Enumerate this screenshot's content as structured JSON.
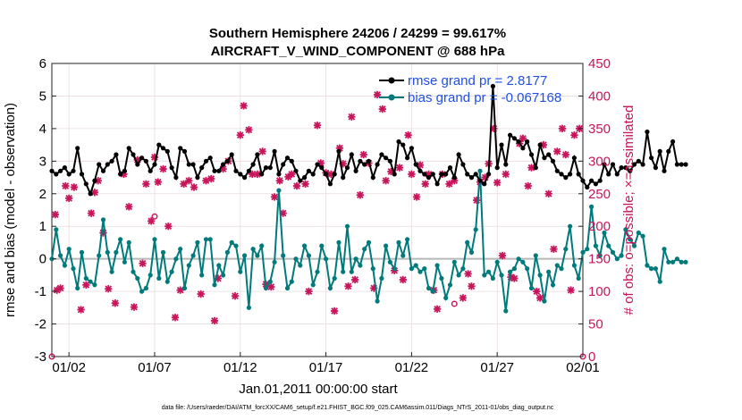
{
  "chart_data": {
    "type": "line",
    "title_line1": "Southern Hemisphere 24206 / 24299 = 99.617%",
    "title_line2": "AIRCRAFT_V_WIND_COMPONENT @ 688 hPa",
    "xlabel": "Jan.01,2011 00:00:00 start",
    "ylabel_left": "rmse and bias (model - observation)",
    "ylabel_right": "# of obs: o=possible; ×=assimilated",
    "ylim_left": [
      -3,
      6
    ],
    "ylim_right": [
      0,
      450
    ],
    "xlim": [
      1,
      32
    ],
    "x_ticks": [
      {
        "x": 2,
        "label": "01/02"
      },
      {
        "x": 7,
        "label": "01/07"
      },
      {
        "x": 12,
        "label": "01/12"
      },
      {
        "x": 17,
        "label": "01/17"
      },
      {
        "x": 22,
        "label": "01/22"
      },
      {
        "x": 27,
        "label": "01/27"
      },
      {
        "x": 32,
        "label": "02/01"
      }
    ],
    "y_ticks_left": [
      "-3",
      "-2",
      "-1",
      "0",
      "1",
      "2",
      "3",
      "4",
      "5",
      "6"
    ],
    "y_ticks_right": [
      "0",
      "50",
      "100",
      "150",
      "200",
      "250",
      "300",
      "350",
      "400",
      "450"
    ],
    "footnote": "data file: /Users/raeder/DAI/ATM_forcXX/CAM6_setup/f.e21.FHIST_BGC.f09_025.CAM6assim.011/Diags_NTrS_2011-01/obs_diag_output.nc",
    "series": [
      {
        "name": "rmse grand pr = 2.8177",
        "color": "#000000",
        "x_start": 1.0,
        "x_step": 0.25,
        "values": [
          2.7,
          2.6,
          2.7,
          2.8,
          2.6,
          2.7,
          3.4,
          2.6,
          2.3,
          2.0,
          2.4,
          2.9,
          2.7,
          2.9,
          3.0,
          3.2,
          2.6,
          2.7,
          3.4,
          3.2,
          2.9,
          3.1,
          3.0,
          2.7,
          2.9,
          3.5,
          3.4,
          3.3,
          2.8,
          2.5,
          3.4,
          3.3,
          2.9,
          2.9,
          2.5,
          2.8,
          3.0,
          3.1,
          2.7,
          2.7,
          2.9,
          3.0,
          3.2,
          2.7,
          2.6,
          2.5,
          2.7,
          2.9,
          3.2,
          2.6,
          2.8,
          2.8,
          3.3,
          2.6,
          2.9,
          3.1,
          3.0,
          2.7,
          2.4,
          2.5,
          2.7,
          2.6,
          2.9,
          2.8,
          2.6,
          2.3,
          2.6,
          3.3,
          2.5,
          2.8,
          3.2,
          2.7,
          3.0,
          2.9,
          3.0,
          2.5,
          2.9,
          3.2,
          3.1,
          3.0,
          2.6,
          3.6,
          3.5,
          3.1,
          3.4,
          2.9,
          2.7,
          2.6,
          2.5,
          2.6,
          2.3,
          2.6,
          2.6,
          2.8,
          2.5,
          3.2,
          2.9,
          2.6,
          2.5,
          2.6,
          2.4,
          2.3,
          2.6,
          5.3,
          2.8,
          3.5,
          2.9,
          3.8,
          3.7,
          3.6,
          3.4,
          3.6,
          3.2,
          2.8,
          3.5,
          3.1,
          3.2,
          3.0,
          2.7,
          2.6,
          2.5,
          2.6,
          3.1,
          2.6,
          2.4,
          2.2,
          2.4,
          2.3,
          2.4,
          2.9,
          2.6,
          2.9,
          2.6,
          2.8,
          2.8,
          2.7,
          2.9,
          3.0,
          2.9,
          3.9,
          3.1,
          2.8,
          3.3,
          2.7,
          3.3,
          3.6,
          2.9,
          2.9,
          2.9
        ]
      },
      {
        "name": "bias grand pr = -0.067168",
        "color": "#007a7a",
        "x_start": 1.0,
        "x_step": 0.25,
        "values": [
          0.0,
          0.9,
          0.1,
          -0.2,
          0.3,
          -0.3,
          -0.9,
          0.2,
          -0.6,
          -0.7,
          -0.8,
          0.1,
          1.2,
          0.2,
          -0.4,
          0.2,
          0.6,
          -0.1,
          0.5,
          -0.4,
          -0.6,
          -1.0,
          -0.9,
          -0.5,
          0.6,
          -0.6,
          0.2,
          -0.7,
          -0.4,
          0.0,
          0.3,
          -0.9,
          -0.2,
          0.1,
          0.5,
          -0.5,
          0.6,
          0.6,
          -0.8,
          -0.2,
          -0.5,
          0.2,
          0.5,
          0.4,
          -0.4,
          0.1,
          -1.5,
          0.3,
          0.1,
          0.4,
          -0.9,
          -0.7,
          -0.1,
          2.1,
          0.1,
          -0.9,
          -0.7,
          0.0,
          -0.2,
          0.4,
          0.1,
          -0.8,
          -0.4,
          0.4,
          0.0,
          -0.9,
          -0.6,
          0.5,
          -0.4,
          1.0,
          -0.4,
          0.0,
          -0.2,
          0.3,
          0.5,
          -0.3,
          -1.3,
          -0.6,
          0.4,
          -0.1,
          -0.3,
          0.5,
          0.1,
          0.6,
          -0.3,
          -0.2,
          -0.4,
          -0.3,
          -0.9,
          -1.0,
          -0.2,
          -0.6,
          -1.2,
          -0.8,
          -0.1,
          -0.5,
          -0.3,
          0.5,
          0.2,
          0.9,
          2.7,
          -0.5,
          -0.4,
          -0.6,
          -0.1,
          -0.5,
          -1.6,
          -0.4,
          -0.3,
          0.0,
          -0.1,
          -0.3,
          -0.9,
          0.1,
          -0.5,
          -1.3,
          -0.4,
          -0.8,
          -0.2,
          -0.3,
          0.3,
          1.0,
          -0.2,
          -0.6,
          0.2,
          0.3,
          1.6,
          0.4,
          0.1,
          0.8,
          0.4,
          0.2,
          0.0,
          0.1,
          0.9,
          0.6,
          0.4,
          0.8,
          0.7,
          -0.2,
          -0.3,
          -0.3,
          -0.7,
          0.3,
          -0.1,
          -0.1,
          0.0,
          -0.1,
          -0.1
        ]
      },
      {
        "name": "# of obs possible",
        "color": "#c8145a",
        "marker": "o",
        "points": [
          [
            1,
            0
          ],
          [
            7,
            215
          ],
          [
            24.5,
            81
          ],
          [
            32,
            0
          ]
        ]
      },
      {
        "name": "# of obs assimilated",
        "color": "#c8145a",
        "marker": "x",
        "points": [
          [
            1.2,
            218
          ],
          [
            1.3,
            102
          ],
          [
            1.5,
            105
          ],
          [
            1.8,
            262
          ],
          [
            2.0,
            243
          ],
          [
            2.3,
            260
          ],
          [
            2.7,
            72
          ],
          [
            3.0,
            110
          ],
          [
            3.3,
            220
          ],
          [
            3.5,
            252
          ],
          [
            3.7,
            270
          ],
          [
            4.0,
            190
          ],
          [
            4.3,
            104
          ],
          [
            4.7,
            82
          ],
          [
            5.2,
            280
          ],
          [
            5.5,
            230
          ],
          [
            5.8,
            76
          ],
          [
            6.0,
            302
          ],
          [
            6.3,
            143
          ],
          [
            6.5,
            265
          ],
          [
            6.8,
            208
          ],
          [
            7.0,
            306
          ],
          [
            7.2,
            268
          ],
          [
            7.5,
            288
          ],
          [
            7.8,
            200
          ],
          [
            8.2,
            60
          ],
          [
            8.5,
            102
          ],
          [
            8.7,
            265
          ],
          [
            9.0,
            270
          ],
          [
            9.3,
            260
          ],
          [
            9.7,
            96
          ],
          [
            10.0,
            270
          ],
          [
            10.3,
            273
          ],
          [
            10.5,
            55
          ],
          [
            10.7,
            120
          ],
          [
            11.0,
            288
          ],
          [
            11.3,
            300
          ],
          [
            11.7,
            93
          ],
          [
            12.0,
            340
          ],
          [
            12.2,
            385
          ],
          [
            12.5,
            348
          ],
          [
            12.7,
            280
          ],
          [
            13.0,
            280
          ],
          [
            13.3,
            315
          ],
          [
            13.5,
            111
          ],
          [
            13.8,
            107
          ],
          [
            14.0,
            245
          ],
          [
            14.3,
            270
          ],
          [
            14.5,
            220
          ],
          [
            14.8,
            276
          ],
          [
            15.0,
            280
          ],
          [
            15.3,
            262
          ],
          [
            15.8,
            265
          ],
          [
            16.0,
            100
          ],
          [
            16.5,
            355
          ],
          [
            16.7,
            297
          ],
          [
            17.0,
            282
          ],
          [
            17.3,
            280
          ],
          [
            17.5,
            70
          ],
          [
            17.8,
            320
          ],
          [
            18.0,
            296
          ],
          [
            18.3,
            108
          ],
          [
            18.5,
            368
          ],
          [
            18.7,
            118
          ],
          [
            19.0,
            248
          ],
          [
            19.2,
            310
          ],
          [
            19.5,
            297
          ],
          [
            19.8,
            105
          ],
          [
            20.0,
            402
          ],
          [
            20.3,
            380
          ],
          [
            20.5,
            270
          ],
          [
            20.8,
            284
          ],
          [
            21.0,
            132
          ],
          [
            21.3,
            290
          ],
          [
            21.5,
            118
          ],
          [
            21.8,
            340
          ],
          [
            22.0,
            280
          ],
          [
            22.3,
            245
          ],
          [
            22.5,
            294
          ],
          [
            22.8,
            265
          ],
          [
            23.0,
            280
          ],
          [
            23.3,
            102
          ],
          [
            23.5,
            73
          ],
          [
            23.8,
            280
          ],
          [
            24.2,
            265
          ],
          [
            24.5,
            270
          ],
          [
            25.0,
            90
          ],
          [
            25.3,
            127
          ],
          [
            25.5,
            108
          ],
          [
            25.8,
            240
          ],
          [
            26.0,
            268
          ],
          [
            26.3,
            275
          ],
          [
            26.5,
            296
          ],
          [
            26.8,
            350
          ],
          [
            27.0,
            267
          ],
          [
            27.3,
            155
          ],
          [
            27.5,
            280
          ],
          [
            27.8,
            122
          ],
          [
            28.0,
            120
          ],
          [
            28.3,
            327
          ],
          [
            28.5,
            335
          ],
          [
            28.8,
            262
          ],
          [
            29.0,
            290
          ],
          [
            29.3,
            100
          ],
          [
            29.5,
            90
          ],
          [
            29.7,
            325
          ],
          [
            30.0,
            250
          ],
          [
            30.3,
            165
          ],
          [
            30.5,
            315
          ],
          [
            30.8,
            350
          ],
          [
            31.0,
            310
          ],
          [
            31.3,
            102
          ],
          [
            31.5,
            340
          ],
          [
            31.8,
            350
          ]
        ]
      }
    ]
  }
}
